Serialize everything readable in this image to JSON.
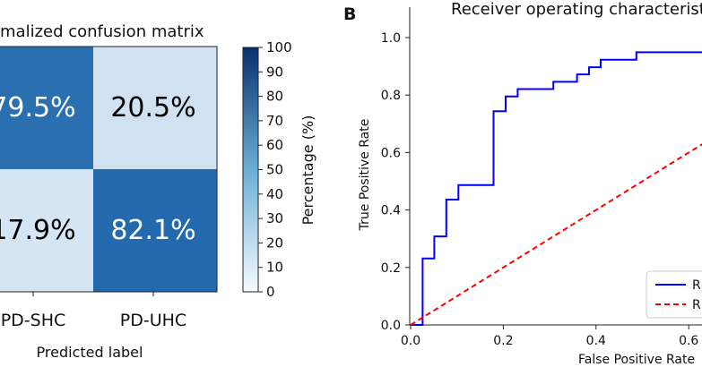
{
  "chart_data": [
    {
      "type": "heatmap",
      "title": "Normalized confusion matrix",
      "title_visible": "malized confusion matrix",
      "xlabel": "Predicted label",
      "x_tick_labels": [
        "PD-SHC",
        "PD-UHC"
      ],
      "cells": [
        {
          "row": 0,
          "col": 0,
          "value": 79.5,
          "label": "79.5%",
          "label_visible": "79.5%",
          "color": "#2a70b1",
          "text_color": "#ffffff"
        },
        {
          "row": 0,
          "col": 1,
          "value": 20.5,
          "label": "20.5%",
          "label_visible": "20.5%",
          "color": "#d0e2f2",
          "text_color": "#000000"
        },
        {
          "row": 1,
          "col": 0,
          "value": 17.9,
          "label": "17.9%",
          "label_visible": "17.9%",
          "color": "#d5e5f3",
          "text_color": "#000000"
        },
        {
          "row": 1,
          "col": 1,
          "value": 82.1,
          "label": "82.1%",
          "label_visible": "82.1%",
          "color": "#2369ad",
          "text_color": "#ffffff"
        }
      ],
      "colorbar": {
        "label": "Percentage (%)",
        "range": [
          0,
          100
        ],
        "ticks": [
          "0",
          "10",
          "20",
          "30",
          "40",
          "50",
          "60",
          "70",
          "80",
          "90",
          "100"
        ],
        "color_low": "#f7fbff",
        "color_mid": "#6baed6",
        "color_high": "#08306b"
      }
    },
    {
      "type": "line",
      "panel_label": "B",
      "title": "Receiver operating characteristic",
      "title_visible": "Receiver operating characteristic",
      "xlabel": "False Positive Rate",
      "xlabel_visible": "False Positive Rate",
      "ylabel": "True Positive Rate",
      "xlim": [
        0,
        1
      ],
      "ylim": [
        0,
        1.05
      ],
      "x_ticks": [
        "0.0",
        "0.2",
        "0.4",
        "0.6"
      ],
      "y_ticks": [
        "0.0",
        "0.2",
        "0.4",
        "0.6",
        "0.8",
        "1.0"
      ],
      "series": [
        {
          "name": "ROC curve",
          "legend_visible": "R",
          "color": "#0000ff",
          "style": "solid",
          "x": [
            0.0,
            0.026,
            0.026,
            0.051,
            0.051,
            0.077,
            0.077,
            0.103,
            0.103,
            0.179,
            0.179,
            0.205,
            0.205,
            0.231,
            0.231,
            0.308,
            0.308,
            0.359,
            0.359,
            0.385,
            0.385,
            0.41,
            0.41,
            0.487,
            0.487,
            1.0
          ],
          "y": [
            0.0,
            0.0,
            0.231,
            0.231,
            0.308,
            0.308,
            0.436,
            0.436,
            0.487,
            0.487,
            0.744,
            0.744,
            0.795,
            0.795,
            0.821,
            0.821,
            0.846,
            0.846,
            0.872,
            0.872,
            0.897,
            0.897,
            0.923,
            0.923,
            0.949,
            0.949
          ]
        },
        {
          "name": "Random",
          "legend_visible": "R",
          "color": "#ff0000",
          "style": "dashed",
          "x": [
            0.0,
            1.0
          ],
          "y": [
            0.0,
            1.0
          ]
        }
      ]
    }
  ]
}
